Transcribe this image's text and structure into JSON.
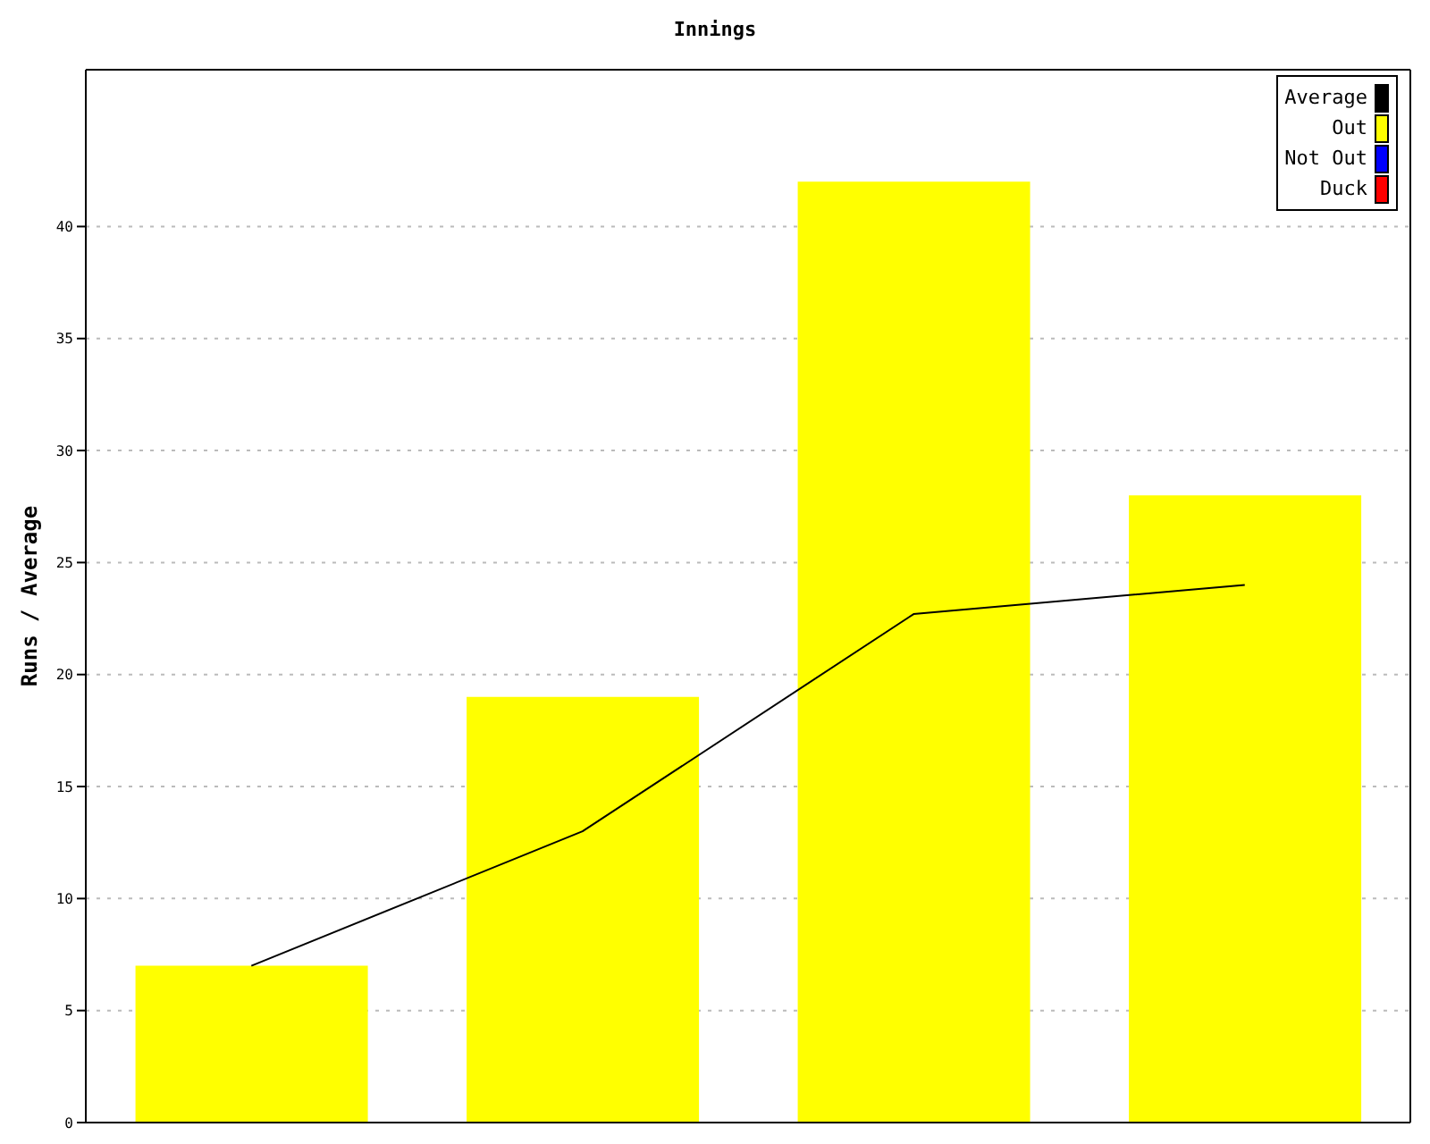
{
  "chart_data": {
    "type": "bar",
    "title": "Innings",
    "ylabel": "Runs / Average",
    "categories": [
      null,
      null,
      null,
      null
    ],
    "stacked": true,
    "series": [
      {
        "name": "Average",
        "type": "line",
        "color": "#000000",
        "values": [
          7,
          13,
          22.7,
          24
        ]
      },
      {
        "name": "Out",
        "color": "#ffff00",
        "values": [
          7,
          19,
          42,
          28
        ]
      },
      {
        "name": "Not Out",
        "color": "#0000ff",
        "values": [
          null,
          null,
          null,
          null
        ]
      },
      {
        "name": "Duck",
        "color": "#ff0000",
        "values": [
          null,
          null,
          null,
          null
        ]
      }
    ],
    "ylim": [
      0,
      47
    ],
    "yticks": [
      0,
      5,
      10,
      15,
      20,
      25,
      30,
      35,
      40
    ],
    "grid": "y",
    "legend": "top right",
    "tick_labels": "y",
    "marker": "none"
  }
}
